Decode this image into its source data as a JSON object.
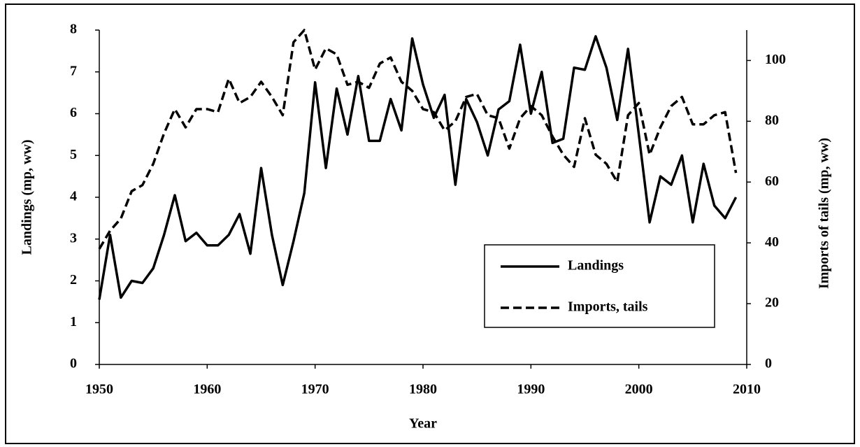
{
  "chart_data": {
    "type": "line",
    "x_label": "Year",
    "y_label": "Landings (mp, ww)",
    "y2_label": "Imports of tails (mp, ww)",
    "x": [
      1950,
      1951,
      1952,
      1953,
      1954,
      1955,
      1956,
      1957,
      1958,
      1959,
      1960,
      1961,
      1962,
      1963,
      1964,
      1965,
      1966,
      1967,
      1968,
      1969,
      1970,
      1971,
      1972,
      1973,
      1974,
      1975,
      1976,
      1977,
      1978,
      1979,
      1980,
      1981,
      1982,
      1983,
      1984,
      1985,
      1986,
      1987,
      1988,
      1989,
      1990,
      1991,
      1992,
      1993,
      1994,
      1995,
      1996,
      1997,
      1998,
      1999,
      2000,
      2001,
      2002,
      2003,
      2004,
      2005,
      2006,
      2007,
      2008,
      2009
    ],
    "series": [
      {
        "name": "Landings",
        "color": "#000000",
        "style": "solid",
        "values": [
          1.55,
          3.1,
          1.6,
          2.0,
          1.95,
          2.3,
          3.1,
          4.05,
          2.95,
          3.15,
          2.85,
          2.85,
          3.1,
          3.6,
          2.65,
          4.7,
          3.1,
          1.9,
          2.95,
          4.1,
          6.75,
          4.7,
          6.6,
          5.5,
          6.9,
          5.35,
          5.35,
          6.35,
          5.6,
          7.8,
          6.7,
          5.9,
          6.45,
          4.3,
          6.35,
          5.8,
          5.0,
          6.1,
          6.3,
          7.65,
          6.0,
          7.0,
          5.3,
          5.4,
          7.1,
          7.05,
          7.85,
          7.1,
          5.85,
          7.55,
          5.5,
          3.4,
          4.5,
          4.3,
          5.0,
          3.4,
          4.8,
          3.8,
          3.5,
          4.0
        ]
      },
      {
        "name": "Imports, tails",
        "color": "#000000",
        "style": "dashed",
        "axis": "y2",
        "values": [
          38,
          44,
          48,
          57,
          59,
          66,
          76,
          84,
          78,
          84,
          84,
          83,
          94,
          86,
          88,
          93,
          88,
          82,
          106,
          110,
          97,
          104,
          102,
          92,
          93,
          91,
          99,
          101,
          93,
          90,
          84,
          83,
          77,
          80,
          88,
          89,
          82,
          81,
          71,
          81,
          85,
          82,
          75,
          69,
          65,
          81,
          69,
          66,
          60,
          82,
          86,
          69,
          78,
          85,
          88,
          79,
          79,
          82,
          83,
          63
        ]
      }
    ],
    "xlim": [
      1950,
      2010
    ],
    "xticks": [
      1950,
      1960,
      1970,
      1980,
      1990,
      2000,
      2010
    ],
    "ylim": [
      0,
      8
    ],
    "yticks": [
      0,
      1,
      2,
      3,
      4,
      5,
      6,
      7,
      8
    ],
    "y2lim": [
      0,
      110
    ],
    "y2ticks": [
      0,
      20,
      40,
      60,
      80,
      100
    ],
    "legend": "lower-right"
  }
}
